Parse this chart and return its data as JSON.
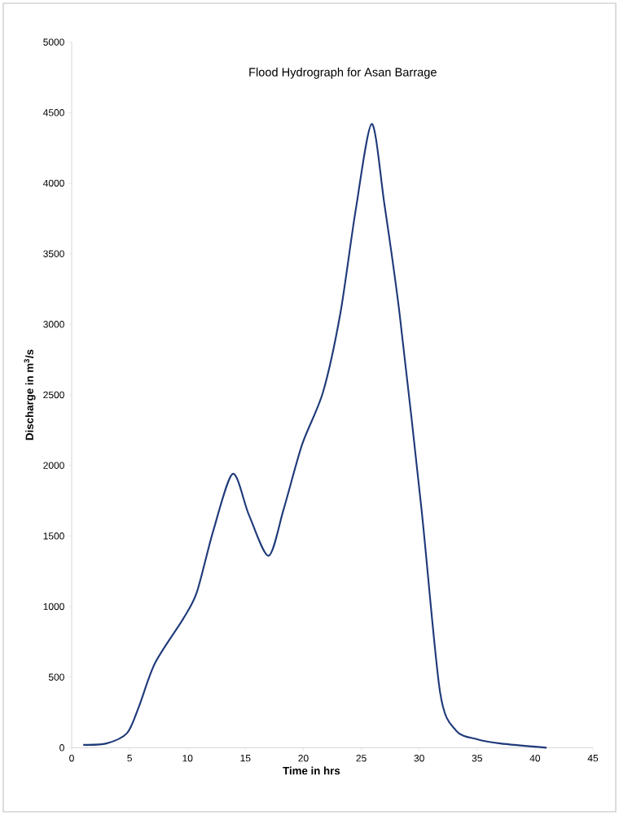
{
  "chart_data": {
    "type": "line",
    "title": "Flood Hydrograph for Asan Barrage",
    "xlabel": "Time in hrs",
    "ylabel": "Discharge in m$^{3}$/s",
    "x": [
      1,
      3,
      4.8,
      5.8,
      7.2,
      9.6,
      10.8,
      12.2,
      13.9,
      15.3,
      17,
      18.3,
      19.9,
      21.7,
      23.2,
      24.5,
      25.9,
      27,
      28.3,
      30.2,
      31.8,
      33.2,
      35,
      37,
      41
    ],
    "series": [
      {
        "color": "#1f3a7a",
        "values": [
          20,
          30,
          105,
          290,
          600,
          910,
          1100,
          1530,
          1940,
          1650,
          1360,
          1690,
          2150,
          2520,
          3080,
          3800,
          4420,
          3850,
          3080,
          1690,
          395,
          120,
          60,
          30,
          0
        ]
      }
    ],
    "xlim": [
      0,
      45
    ],
    "xticks": [
      0,
      5,
      10,
      15,
      20,
      25,
      30,
      35,
      40,
      45
    ],
    "ylim": [
      0,
      5000
    ],
    "yticks": [
      0,
      500,
      1000,
      1500,
      2000,
      2500,
      3000,
      3500,
      4000,
      4500,
      5000
    ],
    "grid": false,
    "marker": "none",
    "line_style": "solid"
  }
}
